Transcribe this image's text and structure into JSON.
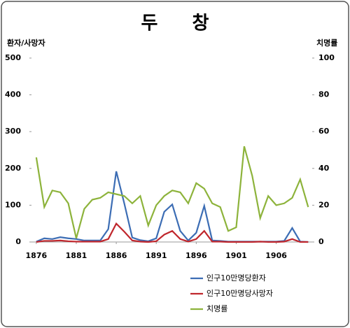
{
  "chart_data": {
    "type": "line",
    "title": "두 창",
    "ylabel": "환자/사망자",
    "y2label": "치명률",
    "x": [
      1876,
      1877,
      1878,
      1879,
      1880,
      1881,
      1882,
      1883,
      1884,
      1885,
      1886,
      1887,
      1888,
      1889,
      1890,
      1891,
      1892,
      1893,
      1894,
      1895,
      1896,
      1897,
      1898,
      1899,
      1900,
      1901,
      1902,
      1903,
      1904,
      1905,
      1906,
      1907,
      1908,
      1909,
      1910
    ],
    "xlim": [
      1875.4,
      1910.5
    ],
    "xticks": [
      1876,
      1881,
      1886,
      1891,
      1896,
      1901,
      1906
    ],
    "ylim": [
      0,
      500
    ],
    "yticks": [
      0,
      100,
      200,
      300,
      400,
      500
    ],
    "y2lim": [
      0,
      100
    ],
    "y2ticks": [
      0,
      20,
      40,
      60,
      80,
      100
    ],
    "grid": false,
    "legend": "bottom",
    "series": [
      {
        "name": "인구10만명당환자",
        "color": "#3c6db4",
        "values": [
          1,
          10,
          8,
          13,
          10,
          8,
          4,
          4,
          4,
          35,
          192,
          105,
          12,
          5,
          2,
          10,
          82,
          102,
          30,
          4,
          25,
          98,
          4,
          3,
          1,
          1,
          1,
          1,
          1,
          1,
          1,
          3,
          38,
          1,
          0
        ]
      },
      {
        "name": "인구10만명당사망자",
        "color": "#c0272d",
        "values": [
          0,
          3,
          3,
          4,
          2,
          1,
          1,
          1,
          1,
          8,
          50,
          28,
          4,
          1,
          0,
          2,
          20,
          30,
          8,
          1,
          8,
          30,
          1,
          1,
          0,
          0,
          0,
          0,
          1,
          0,
          0,
          1,
          8,
          0,
          0
        ]
      },
      {
        "name": "치명률",
        "color": "#8db33b",
        "axis": "y2",
        "values": [
          46,
          19,
          28,
          27,
          21,
          2,
          18,
          23,
          24,
          27,
          26,
          25,
          21,
          25,
          9,
          20,
          25,
          28,
          27,
          21,
          32,
          29,
          21,
          19,
          6,
          8,
          52,
          36,
          13,
          25,
          20,
          21,
          24,
          34,
          19
        ]
      }
    ]
  }
}
